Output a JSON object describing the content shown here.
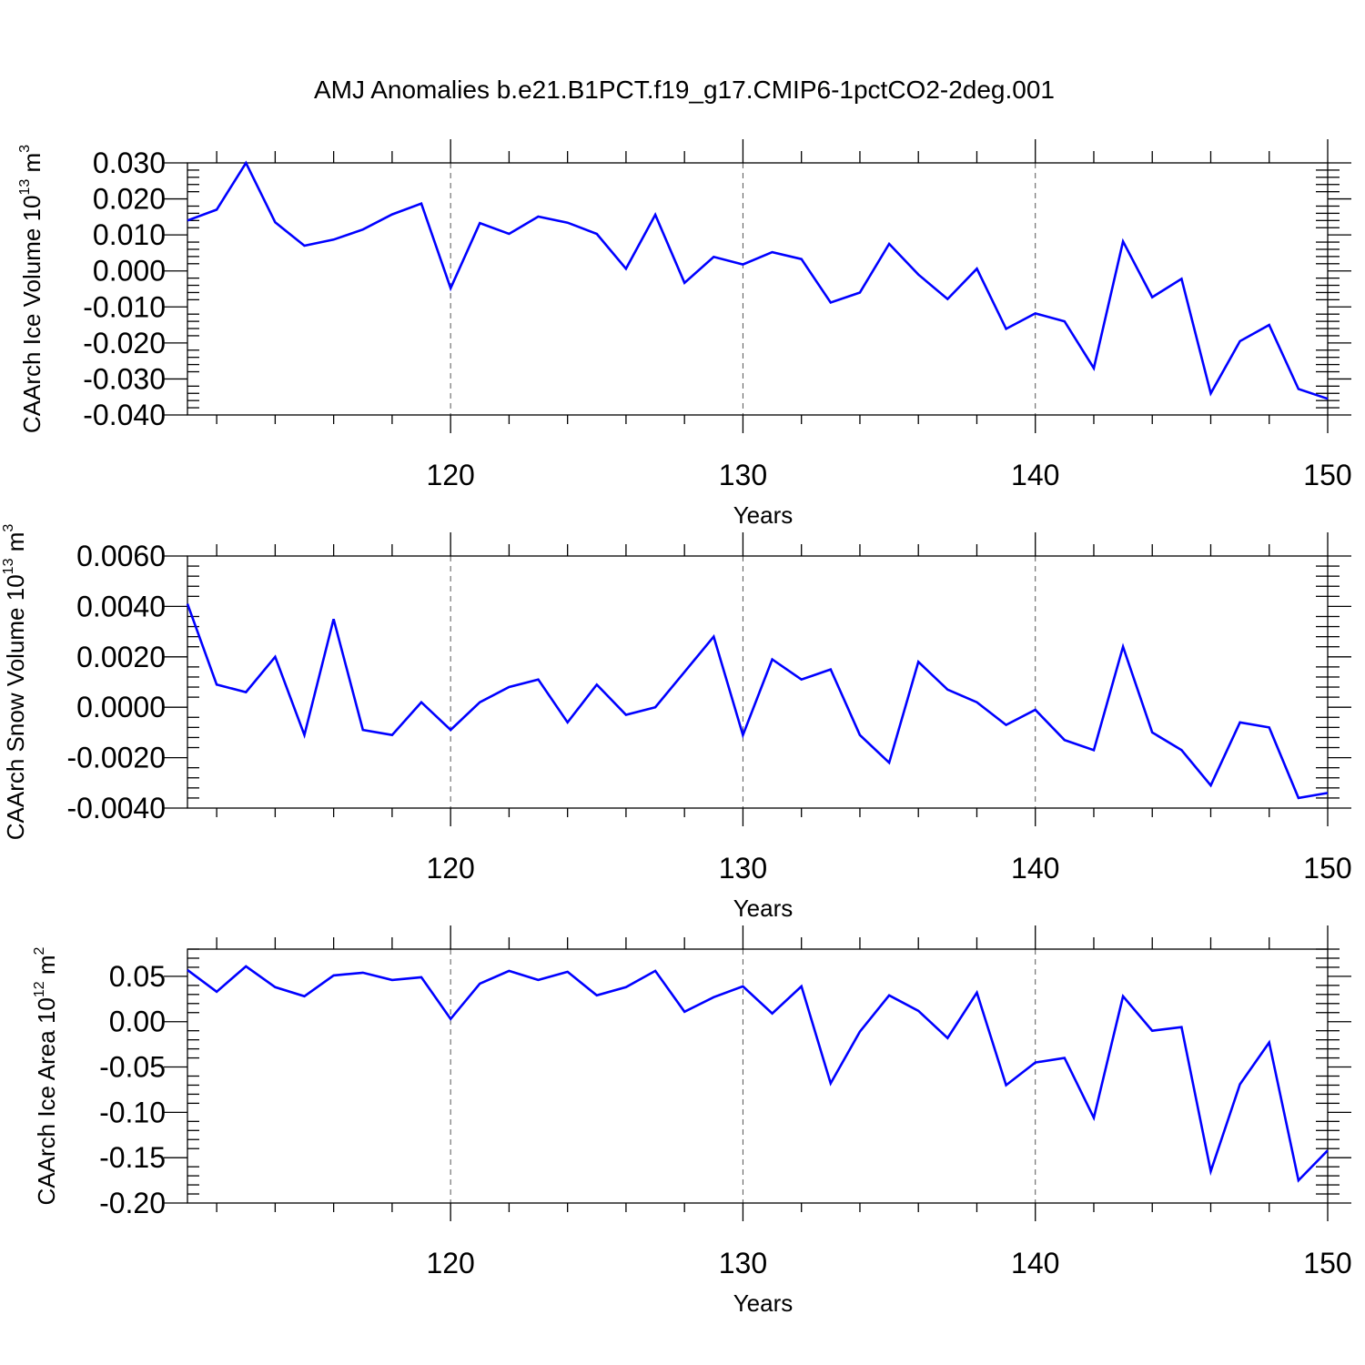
{
  "title": "AMJ Anomalies b.e21.B1PCT.f19_g17.CMIP6-1pctCO2-2deg.001",
  "chart_data": [
    {
      "type": "line",
      "xlabel": "Years",
      "ylabel": {
        "text": "CAArch Ice Volume 10",
        "exp": "13",
        "unit": " m",
        "unit_exp": "3"
      },
      "xlim": [
        111,
        150
      ],
      "ylim": [
        -0.04,
        0.03
      ],
      "x_ticks": [
        120,
        130,
        140,
        150
      ],
      "x_tick_labels": [
        "120",
        "130",
        "140",
        "150"
      ],
      "y_ticks": [
        -0.04,
        -0.03,
        -0.02,
        -0.01,
        0.0,
        0.01,
        0.02,
        0.03
      ],
      "y_tick_labels": [
        "-0.040",
        "-0.030",
        "-0.020",
        "-0.010",
        "0.000",
        "0.010",
        "0.020",
        "0.030"
      ],
      "grid": "vertical-dashed",
      "line_color": "#0000ff",
      "x": [
        111,
        112,
        113,
        114,
        115,
        116,
        117,
        118,
        119,
        120,
        121,
        122,
        123,
        124,
        125,
        126,
        127,
        128,
        129,
        130,
        131,
        132,
        133,
        134,
        135,
        136,
        137,
        138,
        139,
        140,
        141,
        142,
        143,
        144,
        145,
        146,
        147,
        148,
        149,
        150
      ],
      "values": [
        0.014,
        0.017,
        0.03,
        0.0135,
        0.007,
        0.0087,
        0.0115,
        0.0157,
        0.0187,
        -0.0048,
        0.0133,
        0.0103,
        0.0151,
        0.0134,
        0.0103,
        0.0006,
        0.0156,
        -0.0033,
        0.0039,
        0.0018,
        0.0052,
        0.0033,
        -0.0088,
        -0.006,
        0.0075,
        -0.001,
        -0.0078,
        0.0006,
        -0.0161,
        -0.0118,
        -0.014,
        -0.027,
        0.0082,
        -0.0073,
        -0.0022,
        -0.034,
        -0.0195,
        -0.015,
        -0.0328,
        -0.0355
      ]
    },
    {
      "type": "line",
      "xlabel": "Years",
      "ylabel": {
        "text": "CAArch Snow Volume 10",
        "exp": "13",
        "unit": " m",
        "unit_exp": "3"
      },
      "xlim": [
        111,
        150
      ],
      "ylim": [
        -0.004,
        0.006
      ],
      "x_ticks": [
        120,
        130,
        140,
        150
      ],
      "x_tick_labels": [
        "120",
        "130",
        "140",
        "150"
      ],
      "y_ticks": [
        -0.004,
        -0.002,
        0.0,
        0.002,
        0.004,
        0.006
      ],
      "y_tick_labels": [
        "-0.0040",
        "-0.0020",
        "0.0000",
        "0.0020",
        "0.0040",
        "0.0060"
      ],
      "grid": "vertical-dashed",
      "line_color": "#0000ff",
      "x": [
        111,
        112,
        113,
        114,
        115,
        116,
        117,
        118,
        119,
        120,
        121,
        122,
        123,
        124,
        125,
        126,
        127,
        128,
        129,
        130,
        131,
        132,
        133,
        134,
        135,
        136,
        137,
        138,
        139,
        140,
        141,
        142,
        143,
        144,
        145,
        146,
        147,
        148,
        149,
        150
      ],
      "values": [
        0.0041,
        0.0009,
        0.0006,
        0.002,
        -0.0011,
        0.0035,
        -0.0009,
        -0.0011,
        0.0002,
        -0.0009,
        0.0002,
        0.0008,
        0.0011,
        -0.0006,
        0.0009,
        -0.0003,
        0.0,
        0.0014,
        0.0028,
        -0.0011,
        0.0019,
        0.0011,
        0.0015,
        -0.0011,
        -0.0022,
        0.0018,
        0.0007,
        0.0002,
        -0.0007,
        -0.0001,
        -0.0013,
        -0.0017,
        0.0024,
        -0.001,
        -0.0017,
        -0.0031,
        -0.0006,
        -0.0008,
        -0.0036,
        -0.0034
      ]
    },
    {
      "type": "line",
      "xlabel": "Years",
      "ylabel": {
        "text": "CAArch Ice Area 10",
        "exp": "12",
        "unit": " m",
        "unit_exp": "2"
      },
      "xlim": [
        111,
        150
      ],
      "ylim": [
        -0.2,
        0.08
      ],
      "x_ticks": [
        120,
        130,
        140,
        150
      ],
      "x_tick_labels": [
        "120",
        "130",
        "140",
        "150"
      ],
      "y_ticks": [
        -0.2,
        -0.15,
        -0.1,
        -0.05,
        0.0,
        0.05
      ],
      "y_tick_labels": [
        "-0.20",
        "-0.15",
        "-0.10",
        "-0.05",
        "0.00",
        "0.05"
      ],
      "grid": "vertical-dashed",
      "line_color": "#0000ff",
      "x": [
        111,
        112,
        113,
        114,
        115,
        116,
        117,
        118,
        119,
        120,
        121,
        122,
        123,
        124,
        125,
        126,
        127,
        128,
        129,
        130,
        131,
        132,
        133,
        134,
        135,
        136,
        137,
        138,
        139,
        140,
        141,
        142,
        143,
        144,
        145,
        146,
        147,
        148,
        149,
        150
      ],
      "values": [
        0.057,
        0.033,
        0.061,
        0.038,
        0.028,
        0.051,
        0.054,
        0.046,
        0.049,
        0.003,
        0.042,
        0.056,
        0.046,
        0.055,
        0.029,
        0.038,
        0.056,
        0.011,
        0.027,
        0.039,
        0.009,
        0.039,
        -0.068,
        -0.011,
        0.029,
        0.012,
        -0.018,
        0.032,
        -0.07,
        -0.045,
        -0.04,
        -0.106,
        0.028,
        -0.01,
        -0.006,
        -0.165,
        -0.069,
        -0.023,
        -0.175,
        -0.142
      ]
    }
  ]
}
